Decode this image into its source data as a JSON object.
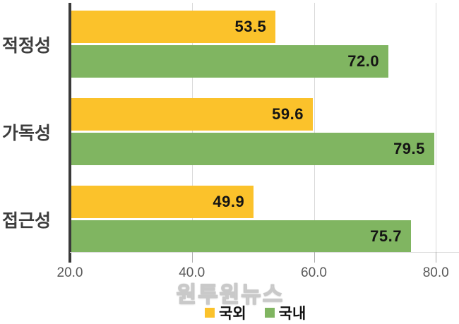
{
  "watermark": {
    "text": "원투원뉴스"
  },
  "colors": {
    "series_overseas": "#FBC22B",
    "series_domestic": "#80B561",
    "axis_line": "#3A3A3A",
    "gridline": "#D9D9D9",
    "tick_label": "#595959",
    "category_label": "#3D3D3D",
    "data_label": "#141414",
    "watermark_fill": "#FFFFFF",
    "watermark_outline": "#C9C9C9"
  },
  "chart_data": {
    "type": "bar",
    "orientation": "horizontal",
    "title": "",
    "categories": [
      "적정성",
      "가독성",
      "접근성"
    ],
    "series": [
      {
        "key": "overseas",
        "name": "국외",
        "color": "#FBC22B",
        "values": [
          53.5,
          59.6,
          49.9
        ]
      },
      {
        "key": "domestic",
        "name": "국내",
        "color": "#80B561",
        "values": [
          72.0,
          79.5,
          75.7
        ]
      }
    ],
    "x_tick_labels": [
      "20.0",
      "40.0",
      "60.0",
      "80.0"
    ],
    "x_tick_values": [
      20,
      40,
      60,
      80
    ],
    "xlim": [
      20,
      83.8
    ],
    "grid": "vertical",
    "legend_position": "bottom-center",
    "value_format": "one-decimal"
  }
}
